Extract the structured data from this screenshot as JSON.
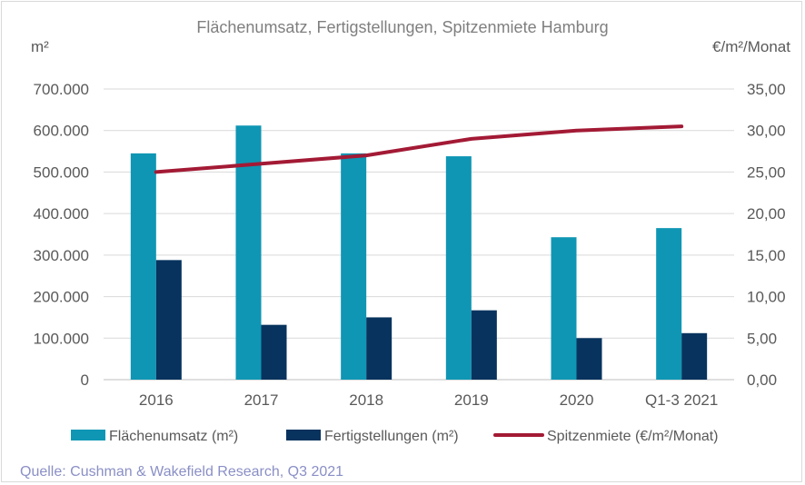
{
  "chart_data": {
    "type": "bar+line",
    "title": "Flächenumsatz, Fertigstellungen, Spitzenmiete Hamburg",
    "y_left_label": "m²",
    "y_right_label": "€/m²/Monat",
    "categories": [
      "2016",
      "2017",
      "2018",
      "2019",
      "2020",
      "Q1-3 2021"
    ],
    "y_left": {
      "min": 0,
      "max": 700000,
      "ticks": [
        "0",
        "100.000",
        "200.000",
        "300.000",
        "400.000",
        "500.000",
        "600.000",
        "700.000"
      ]
    },
    "y_right": {
      "min": 0,
      "max": 35,
      "ticks": [
        "0,00",
        "5,00",
        "10,00",
        "15,00",
        "20,00",
        "25,00",
        "30,00",
        "35,00"
      ]
    },
    "series": [
      {
        "name": "Flächenumsatz (m²)",
        "type": "bar",
        "axis": "left",
        "color": "#0f96b4",
        "values": [
          545000,
          612000,
          545000,
          538000,
          343000,
          365000
        ]
      },
      {
        "name": "Fertigstellungen (m²)",
        "type": "bar",
        "axis": "left",
        "color": "#07335e",
        "values": [
          288000,
          132000,
          150000,
          167000,
          100000,
          112000
        ]
      },
      {
        "name": "Spitzenmiete (€/m²/Monat)",
        "type": "line",
        "axis": "right",
        "color": "#a31a35",
        "values": [
          25.0,
          26.0,
          27.0,
          29.0,
          30.0,
          30.5
        ]
      }
    ],
    "gridlines": true,
    "legend_position": "bottom"
  },
  "source": "Quelle: Cushman & Wakefield Research, Q3 2021"
}
